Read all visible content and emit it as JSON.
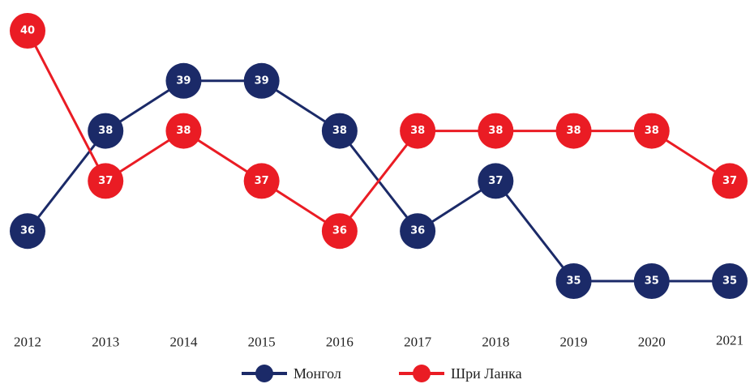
{
  "chart_data": {
    "type": "line",
    "categories": [
      "2012",
      "2013",
      "2014",
      "2015",
      "2016",
      "2017",
      "2018",
      "2019",
      "2020",
      "2021"
    ],
    "series": [
      {
        "name": "Монгол",
        "color": "#1b2a68",
        "values": [
          36,
          38,
          39,
          39,
          38,
          36,
          37,
          35,
          35,
          35
        ]
      },
      {
        "name": "Шри Ланка",
        "color": "#ea1c24",
        "values": [
          40,
          37,
          38,
          37,
          36,
          38,
          38,
          38,
          38,
          37
        ]
      }
    ]
  }
}
